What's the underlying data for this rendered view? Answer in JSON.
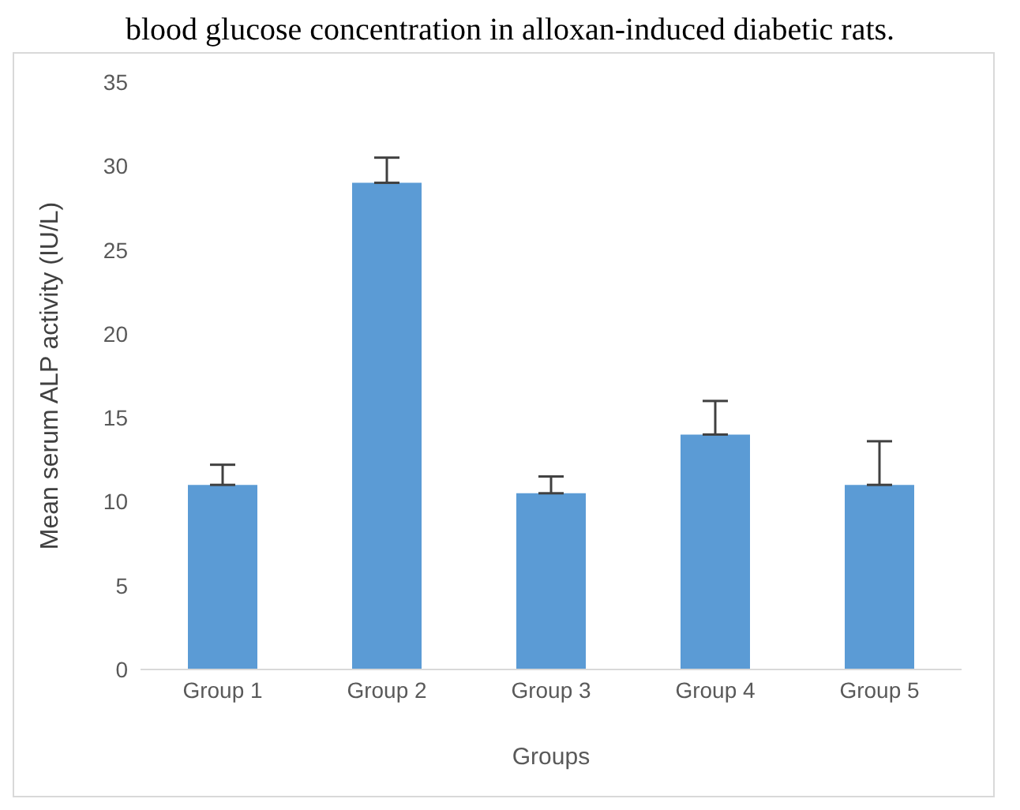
{
  "chart_data": {
    "type": "bar",
    "title": "blood glucose concentration in alloxan-induced diabetic rats.",
    "xlabel": "Groups",
    "ylabel": "Mean serum ALP activity (IU/L)",
    "categories": [
      "Group 1",
      "Group 2",
      "Group 3",
      "Group 4",
      "Group 5"
    ],
    "values": [
      11,
      29,
      10.5,
      14,
      11
    ],
    "errors": [
      [
        11,
        12.2
      ],
      [
        29,
        30.5
      ],
      [
        10.5,
        11.5
      ],
      [
        14,
        16
      ],
      [
        11,
        13.6
      ]
    ],
    "color": "#5b9bd5",
    "ylim": [
      0,
      35
    ],
    "yticks": [
      0,
      5,
      10,
      15,
      20,
      25,
      30,
      35
    ],
    "grid": false
  }
}
